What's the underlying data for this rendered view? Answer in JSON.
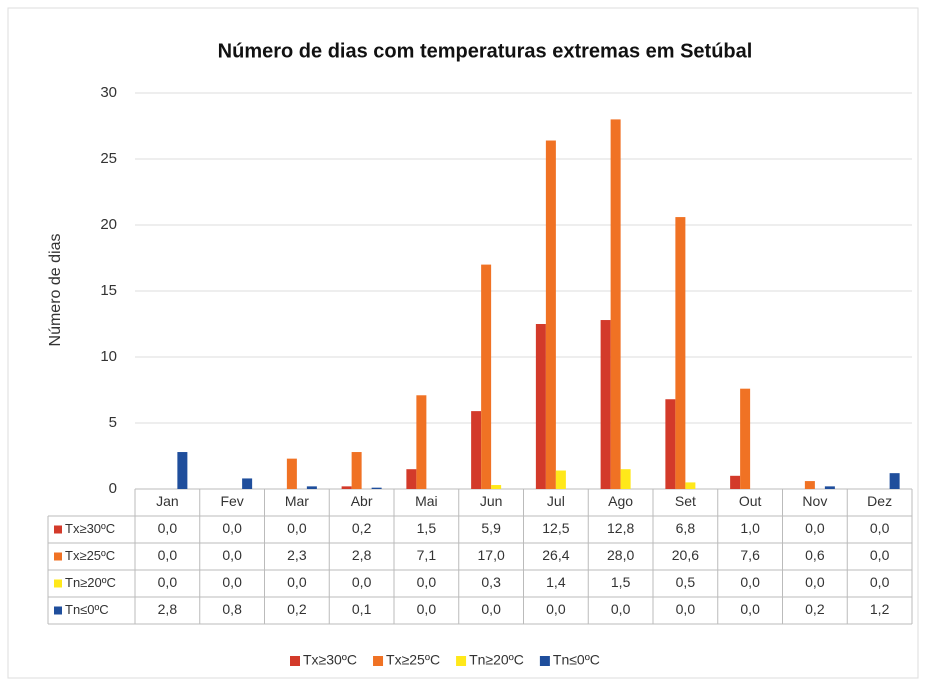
{
  "chart_data": {
    "type": "bar",
    "title": "Número de dias com temperaturas extremas em Setúbal",
    "ylabel": "Número de dias",
    "categories": [
      "Jan",
      "Fev",
      "Mar",
      "Abr",
      "Mai",
      "Jun",
      "Jul",
      "Ago",
      "Set",
      "Out",
      "Nov",
      "Dez"
    ],
    "ylim": [
      0,
      30
    ],
    "yticks": [
      0,
      5,
      10,
      15,
      20,
      25,
      30
    ],
    "grid": true,
    "series": [
      {
        "name": "Tx≥30ºC",
        "color": "#d33a2a",
        "values": [
          0.0,
          0.0,
          0.0,
          0.2,
          1.5,
          5.9,
          12.5,
          12.8,
          6.8,
          1.0,
          0.0,
          0.0
        ],
        "value_labels": [
          "0,0",
          "0,0",
          "0,0",
          "0,2",
          "1,5",
          "5,9",
          "12,5",
          "12,8",
          "6,8",
          "1,0",
          "0,0",
          "0,0"
        ]
      },
      {
        "name": "Tx≥25ºC",
        "color": "#f07224",
        "values": [
          0.0,
          0.0,
          2.3,
          2.8,
          7.1,
          17.0,
          26.4,
          28.0,
          20.6,
          7.6,
          0.6,
          0.0
        ],
        "value_labels": [
          "0,0",
          "0,0",
          "2,3",
          "2,8",
          "7,1",
          "17,0",
          "26,4",
          "28,0",
          "20,6",
          "7,6",
          "0,6",
          "0,0"
        ]
      },
      {
        "name": "Tn≥20ºC",
        "color": "#ffe81a",
        "values": [
          0.0,
          0.0,
          0.0,
          0.0,
          0.0,
          0.3,
          1.4,
          1.5,
          0.5,
          0.0,
          0.0,
          0.0
        ],
        "value_labels": [
          "0,0",
          "0,0",
          "0,0",
          "0,0",
          "0,0",
          "0,3",
          "1,4",
          "1,5",
          "0,5",
          "0,0",
          "0,0",
          "0,0"
        ]
      },
      {
        "name": "Tn≤0ºC",
        "color": "#1f4e9c",
        "values": [
          2.8,
          0.8,
          0.2,
          0.1,
          0.0,
          0.0,
          0.0,
          0.0,
          0.0,
          0.0,
          0.2,
          1.2
        ],
        "value_labels": [
          "2,8",
          "0,8",
          "0,2",
          "0,1",
          "0,0",
          "0,0",
          "0,0",
          "0,0",
          "0,0",
          "0,0",
          "0,2",
          "1,2"
        ]
      }
    ]
  }
}
